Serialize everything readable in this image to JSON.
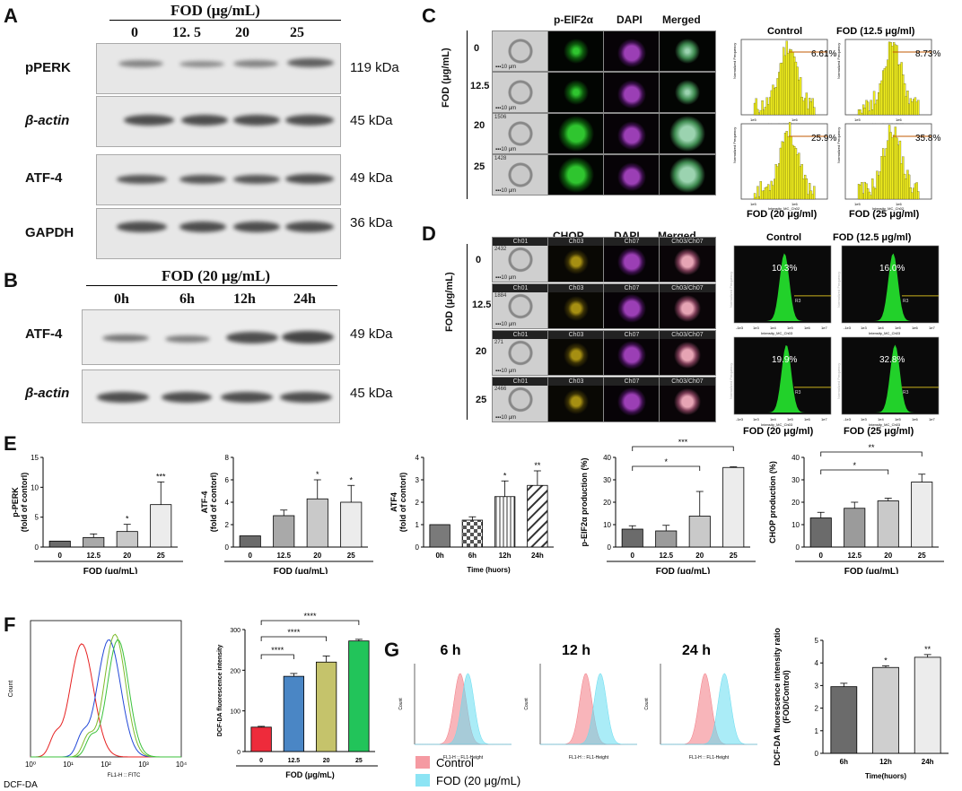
{
  "panels": {
    "A": "A",
    "B": "B",
    "C": "C",
    "D": "D",
    "E": "E",
    "F": "F",
    "G": "G"
  },
  "panelA": {
    "header": "FOD (μg/mL)",
    "doses": [
      "0",
      "12. 5",
      "20",
      "25"
    ],
    "rows": [
      {
        "name": "pPERK",
        "kda": "119 kDa"
      },
      {
        "name": "β-actin",
        "kda": "45 kDa"
      },
      {
        "name": "ATF-4",
        "kda": "49 kDa"
      },
      {
        "name": "GAPDH",
        "kda": "36 kDa"
      }
    ]
  },
  "panelB": {
    "header": "FOD (20 μg/mL)",
    "times": [
      "0h",
      "6h",
      "12h",
      "24h"
    ],
    "rows": [
      {
        "name": "ATF-4",
        "kda": "49 kDa"
      },
      {
        "name": "β-actin",
        "kda": "45 kDa"
      }
    ]
  },
  "panelC": {
    "cols": [
      "p-EIF2α",
      "DAPI",
      "Merged"
    ],
    "ylabel": "FOD (μg/mL)",
    "doses": [
      "0",
      "12.5",
      "20",
      "25"
    ],
    "cell_ids": [
      "",
      "",
      "1506",
      "1428"
    ],
    "hist_titles": [
      "Control",
      "FOD (12.5 μg/ml)",
      "FOD (20 μg/ml)",
      "FOD (25 μg/ml)"
    ],
    "percents": [
      "6.61%",
      "8.73%",
      "25.9%",
      "35.8%"
    ],
    "axis_y": "Normalized Frequency",
    "axis_x": "Intensity_MC_Ch02",
    "scale": "10 μm"
  },
  "panelD": {
    "cols": [
      "CHOP",
      "DAPI",
      "Merged"
    ],
    "ylabel": "FOD (μg/mL)",
    "doses": [
      "0",
      "12.5",
      "20",
      "25"
    ],
    "cell_ids": [
      "2432",
      "1884",
      "271",
      "2466"
    ],
    "ch": [
      "Ch01",
      "Ch03",
      "Ch07",
      "Ch03/Ch07"
    ],
    "hist_titles": [
      "Control",
      "FOD (12.5 μg/ml)",
      "FOD (20 μg/ml)",
      "FOD (25 μg/ml)"
    ],
    "percents": [
      "10.3%",
      "16.0%",
      "19.9%",
      "32.8%"
    ],
    "axis_x": "Intensity_MC_Ch03",
    "gate": "R3"
  },
  "chart_data": [
    {
      "type": "bar",
      "id": "E1",
      "categories": [
        "0",
        "12.5",
        "20",
        "25"
      ],
      "values": [
        1,
        1.6,
        2.6,
        7.1
      ],
      "errors": [
        0,
        0.6,
        1.2,
        3.8
      ],
      "sig": [
        "",
        "",
        "*",
        "***"
      ],
      "ylabel": "p-PERK (fold of contorl)",
      "xlabel": "FOD (μg/mL)",
      "ylim": [
        0,
        15
      ],
      "yticks": [
        0,
        5,
        10,
        15
      ]
    },
    {
      "type": "bar",
      "id": "E2",
      "categories": [
        "0",
        "12.5",
        "20",
        "25"
      ],
      "values": [
        1,
        2.8,
        4.3,
        4.0
      ],
      "errors": [
        0,
        0.5,
        1.7,
        1.5
      ],
      "sig": [
        "",
        "",
        "*",
        "*"
      ],
      "ylabel": "ATF-4 (fold of contorl)",
      "xlabel": "FOD (μg/mL)",
      "ylim": [
        0,
        8
      ],
      "yticks": [
        0,
        2,
        4,
        6,
        8
      ]
    },
    {
      "type": "bar",
      "id": "E3",
      "categories": [
        "0h",
        "6h",
        "12h",
        "24h"
      ],
      "values": [
        1,
        1.2,
        2.25,
        2.75
      ],
      "errors": [
        0,
        0.15,
        0.7,
        0.65
      ],
      "sig": [
        "",
        "",
        "*",
        "**"
      ],
      "ylabel": "ATF4 (fold of contorl)",
      "xlabel": "Time (huors)",
      "ylim": [
        0,
        4
      ],
      "yticks": [
        0,
        1,
        2,
        3,
        4
      ]
    },
    {
      "type": "bar",
      "id": "E4",
      "categories": [
        "0",
        "12.5",
        "20",
        "25"
      ],
      "values": [
        8,
        7.2,
        13.8,
        35.5
      ],
      "errors": [
        1.5,
        2.5,
        11,
        0.3
      ],
      "sig": [],
      "brackets": [
        {
          "from": 0,
          "to": 2,
          "label": "*"
        },
        {
          "from": 0,
          "to": 3,
          "label": "***"
        }
      ],
      "ylabel": "p-EIF2α production (%)",
      "xlabel": "FOD (μg/mL)",
      "ylim": [
        0,
        40
      ],
      "yticks": [
        0,
        10,
        20,
        30,
        40
      ]
    },
    {
      "type": "bar",
      "id": "E5",
      "categories": [
        "0",
        "12.5",
        "20",
        "25"
      ],
      "values": [
        13,
        17.3,
        20.6,
        29
      ],
      "errors": [
        2.5,
        2.7,
        1.2,
        3.5
      ],
      "sig": [],
      "brackets": [
        {
          "from": 0,
          "to": 2,
          "label": "*"
        },
        {
          "from": 0,
          "to": 3,
          "label": "**"
        }
      ],
      "ylabel": "CHOP production (%)",
      "xlabel": "FOD (μg/mL)",
      "ylim": [
        0,
        40
      ],
      "yticks": [
        0,
        10,
        20,
        30,
        40
      ]
    },
    {
      "type": "line",
      "id": "F1",
      "xlabel": "FL1-H :: FITC",
      "ylabel": "Count",
      "legend_label": "DCF-DA",
      "xticks": [
        "10⁰",
        "10¹",
        "10²",
        "10³",
        "10⁴"
      ]
    },
    {
      "type": "bar",
      "id": "F2",
      "categories": [
        "0",
        "12.5",
        "20",
        "25"
      ],
      "values": [
        60,
        185,
        220,
        272
      ],
      "errors": [
        2,
        7,
        15,
        4
      ],
      "colors": [
        "#ee2b3b",
        "#4a86c5",
        "#c5c36b",
        "#22c45a"
      ],
      "brackets": [
        {
          "from": 0,
          "to": 1,
          "label": "****"
        },
        {
          "from": 0,
          "to": 2,
          "label": "****"
        },
        {
          "from": 0,
          "to": 3,
          "label": "****"
        }
      ],
      "ylabel": "DCF-DA fluorescence intensity",
      "xlabel": "FOD (μg/mL)",
      "ylim": [
        0,
        300
      ],
      "yticks": [
        0,
        100,
        200,
        300
      ]
    },
    {
      "type": "area",
      "id": "G",
      "titles": [
        "6 h",
        "12 h",
        "24 h"
      ],
      "xlabel": "FL1-H :: FL1-Height",
      "ylabel": "Count",
      "legend": [
        "Control",
        "FOD (20 μg/mL)"
      ]
    },
    {
      "type": "bar",
      "id": "G4",
      "categories": [
        "6h",
        "12h",
        "24h"
      ],
      "values": [
        2.95,
        3.8,
        4.25
      ],
      "errors": [
        0.15,
        0.07,
        0.12
      ],
      "sig": [
        "",
        "*",
        "**"
      ],
      "ylabel": "DCF-DA fluorescence intensity ratio (FOD/Control)",
      "xlabel": "Time(huors)",
      "ylim": [
        0,
        5
      ],
      "yticks": [
        0,
        1,
        2,
        3,
        4,
        5
      ]
    }
  ]
}
